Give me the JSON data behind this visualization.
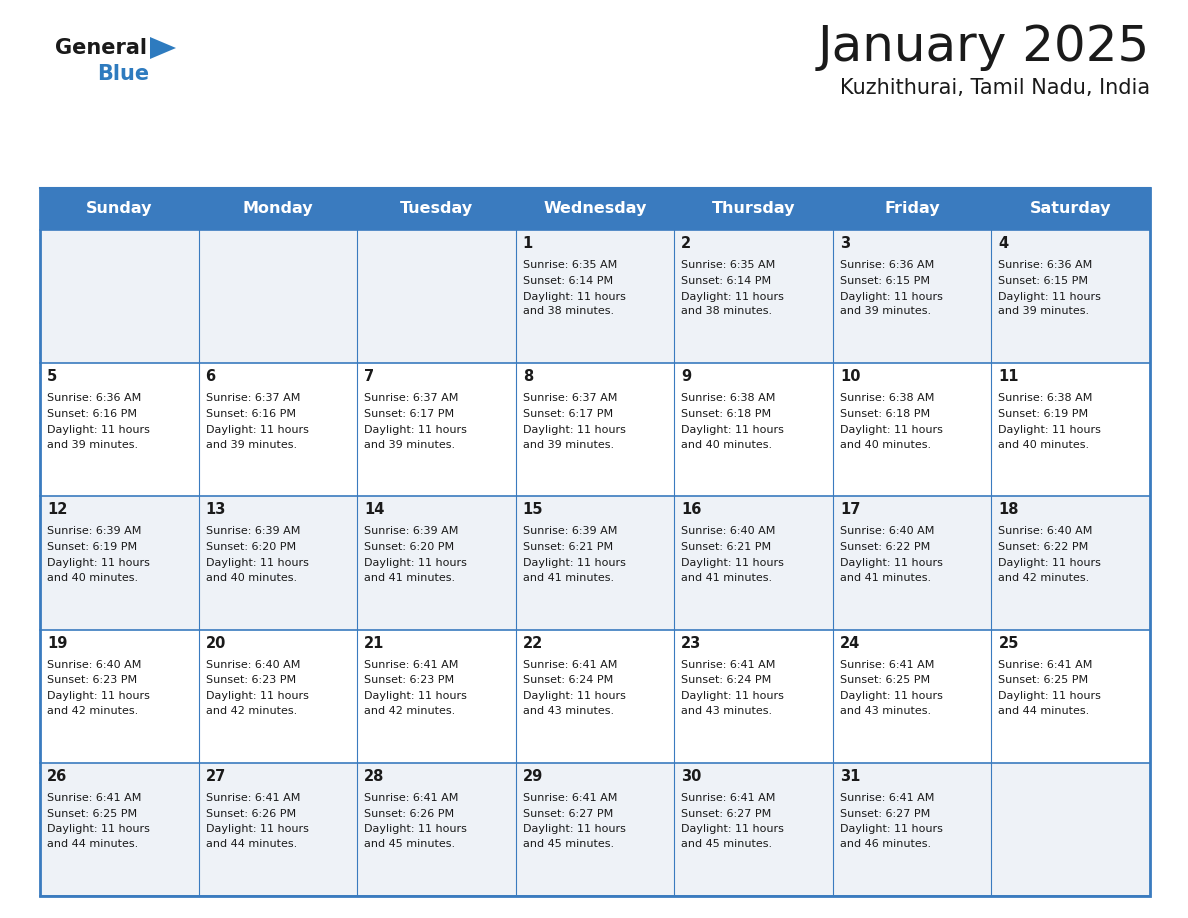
{
  "title": "January 2025",
  "subtitle": "Kuzhithurai, Tamil Nadu, India",
  "header_bg": "#3a7bbf",
  "header_text": "#ffffff",
  "day_names": [
    "Sunday",
    "Monday",
    "Tuesday",
    "Wednesday",
    "Thursday",
    "Friday",
    "Saturday"
  ],
  "cell_bg_odd": "#eef2f7",
  "cell_bg_even": "#ffffff",
  "border_color": "#3a7bbf",
  "text_color": "#1a1a1a",
  "logo_black": "#1a1a1a",
  "logo_blue": "#2e7bbf",
  "days": [
    {
      "day": 1,
      "col": 3,
      "row": 0,
      "sunrise": "6:35 AM",
      "sunset": "6:14 PM",
      "daylight": "11 hours and 38 minutes."
    },
    {
      "day": 2,
      "col": 4,
      "row": 0,
      "sunrise": "6:35 AM",
      "sunset": "6:14 PM",
      "daylight": "11 hours and 38 minutes."
    },
    {
      "day": 3,
      "col": 5,
      "row": 0,
      "sunrise": "6:36 AM",
      "sunset": "6:15 PM",
      "daylight": "11 hours and 39 minutes."
    },
    {
      "day": 4,
      "col": 6,
      "row": 0,
      "sunrise": "6:36 AM",
      "sunset": "6:15 PM",
      "daylight": "11 hours and 39 minutes."
    },
    {
      "day": 5,
      "col": 0,
      "row": 1,
      "sunrise": "6:36 AM",
      "sunset": "6:16 PM",
      "daylight": "11 hours and 39 minutes."
    },
    {
      "day": 6,
      "col": 1,
      "row": 1,
      "sunrise": "6:37 AM",
      "sunset": "6:16 PM",
      "daylight": "11 hours and 39 minutes."
    },
    {
      "day": 7,
      "col": 2,
      "row": 1,
      "sunrise": "6:37 AM",
      "sunset": "6:17 PM",
      "daylight": "11 hours and 39 minutes."
    },
    {
      "day": 8,
      "col": 3,
      "row": 1,
      "sunrise": "6:37 AM",
      "sunset": "6:17 PM",
      "daylight": "11 hours and 39 minutes."
    },
    {
      "day": 9,
      "col": 4,
      "row": 1,
      "sunrise": "6:38 AM",
      "sunset": "6:18 PM",
      "daylight": "11 hours and 40 minutes."
    },
    {
      "day": 10,
      "col": 5,
      "row": 1,
      "sunrise": "6:38 AM",
      "sunset": "6:18 PM",
      "daylight": "11 hours and 40 minutes."
    },
    {
      "day": 11,
      "col": 6,
      "row": 1,
      "sunrise": "6:38 AM",
      "sunset": "6:19 PM",
      "daylight": "11 hours and 40 minutes."
    },
    {
      "day": 12,
      "col": 0,
      "row": 2,
      "sunrise": "6:39 AM",
      "sunset": "6:19 PM",
      "daylight": "11 hours and 40 minutes."
    },
    {
      "day": 13,
      "col": 1,
      "row": 2,
      "sunrise": "6:39 AM",
      "sunset": "6:20 PM",
      "daylight": "11 hours and 40 minutes."
    },
    {
      "day": 14,
      "col": 2,
      "row": 2,
      "sunrise": "6:39 AM",
      "sunset": "6:20 PM",
      "daylight": "11 hours and 41 minutes."
    },
    {
      "day": 15,
      "col": 3,
      "row": 2,
      "sunrise": "6:39 AM",
      "sunset": "6:21 PM",
      "daylight": "11 hours and 41 minutes."
    },
    {
      "day": 16,
      "col": 4,
      "row": 2,
      "sunrise": "6:40 AM",
      "sunset": "6:21 PM",
      "daylight": "11 hours and 41 minutes."
    },
    {
      "day": 17,
      "col": 5,
      "row": 2,
      "sunrise": "6:40 AM",
      "sunset": "6:22 PM",
      "daylight": "11 hours and 41 minutes."
    },
    {
      "day": 18,
      "col": 6,
      "row": 2,
      "sunrise": "6:40 AM",
      "sunset": "6:22 PM",
      "daylight": "11 hours and 42 minutes."
    },
    {
      "day": 19,
      "col": 0,
      "row": 3,
      "sunrise": "6:40 AM",
      "sunset": "6:23 PM",
      "daylight": "11 hours and 42 minutes."
    },
    {
      "day": 20,
      "col": 1,
      "row": 3,
      "sunrise": "6:40 AM",
      "sunset": "6:23 PM",
      "daylight": "11 hours and 42 minutes."
    },
    {
      "day": 21,
      "col": 2,
      "row": 3,
      "sunrise": "6:41 AM",
      "sunset": "6:23 PM",
      "daylight": "11 hours and 42 minutes."
    },
    {
      "day": 22,
      "col": 3,
      "row": 3,
      "sunrise": "6:41 AM",
      "sunset": "6:24 PM",
      "daylight": "11 hours and 43 minutes."
    },
    {
      "day": 23,
      "col": 4,
      "row": 3,
      "sunrise": "6:41 AM",
      "sunset": "6:24 PM",
      "daylight": "11 hours and 43 minutes."
    },
    {
      "day": 24,
      "col": 5,
      "row": 3,
      "sunrise": "6:41 AM",
      "sunset": "6:25 PM",
      "daylight": "11 hours and 43 minutes."
    },
    {
      "day": 25,
      "col": 6,
      "row": 3,
      "sunrise": "6:41 AM",
      "sunset": "6:25 PM",
      "daylight": "11 hours and 44 minutes."
    },
    {
      "day": 26,
      "col": 0,
      "row": 4,
      "sunrise": "6:41 AM",
      "sunset": "6:25 PM",
      "daylight": "11 hours and 44 minutes."
    },
    {
      "day": 27,
      "col": 1,
      "row": 4,
      "sunrise": "6:41 AM",
      "sunset": "6:26 PM",
      "daylight": "11 hours and 44 minutes."
    },
    {
      "day": 28,
      "col": 2,
      "row": 4,
      "sunrise": "6:41 AM",
      "sunset": "6:26 PM",
      "daylight": "11 hours and 45 minutes."
    },
    {
      "day": 29,
      "col": 3,
      "row": 4,
      "sunrise": "6:41 AM",
      "sunset": "6:27 PM",
      "daylight": "11 hours and 45 minutes."
    },
    {
      "day": 30,
      "col": 4,
      "row": 4,
      "sunrise": "6:41 AM",
      "sunset": "6:27 PM",
      "daylight": "11 hours and 45 minutes."
    },
    {
      "day": 31,
      "col": 5,
      "row": 4,
      "sunrise": "6:41 AM",
      "sunset": "6:27 PM",
      "daylight": "11 hours and 46 minutes."
    }
  ]
}
